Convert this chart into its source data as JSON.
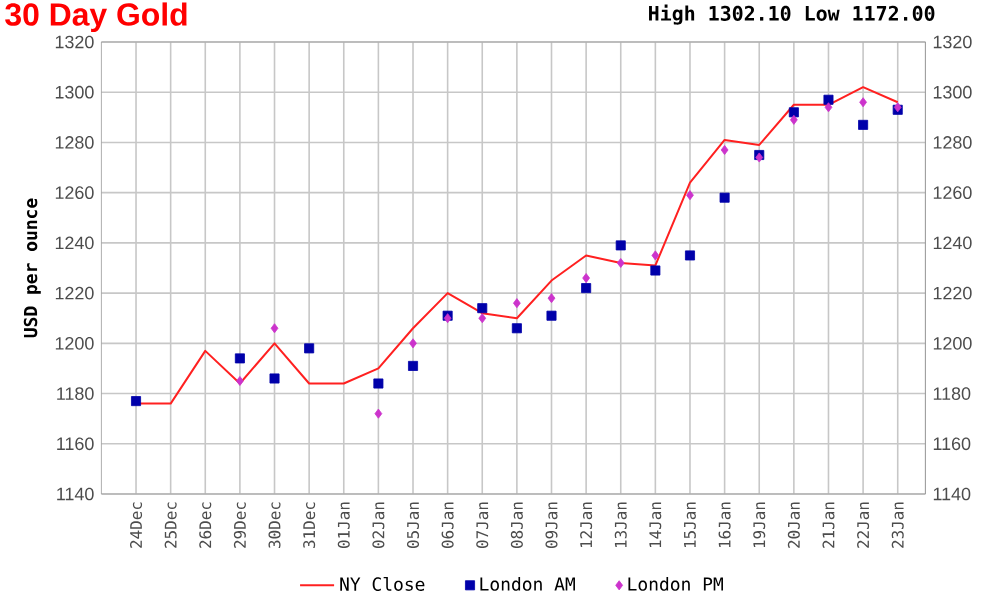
{
  "chart_data": {
    "type": "line",
    "title": "30 Day Gold",
    "subtitle": "High 1302.10 Low 1172.00",
    "ylabel": "USD per ounce",
    "categories": [
      "24Dec",
      "25Dec",
      "26Dec",
      "29Dec",
      "30Dec",
      "31Dec",
      "01Jan",
      "02Jan",
      "05Jan",
      "06Jan",
      "07Jan",
      "08Jan",
      "09Jan",
      "12Jan",
      "13Jan",
      "14Jan",
      "15Jan",
      "16Jan",
      "19Jan",
      "20Jan",
      "21Jan",
      "22Jan",
      "23Jan"
    ],
    "series": [
      {
        "name": "NY Close",
        "color": "#ff2020",
        "marker": "none",
        "line_style": "solid",
        "values": [
          1176,
          1176,
          1197,
          1184,
          1200,
          1184,
          1184,
          1190,
          1206,
          1220,
          1212,
          1210,
          1225,
          1235,
          1232,
          1231,
          1264,
          1281,
          1279,
          1295,
          1295,
          1302,
          1296
        ]
      },
      {
        "name": "London AM",
        "type": "scatter",
        "color": "#0000aa",
        "marker": "square",
        "values": [
          1177,
          null,
          null,
          1194,
          1186,
          1198,
          null,
          1184,
          1191,
          1211,
          1214,
          1206,
          1211,
          1222,
          1239,
          1229,
          1235,
          1258,
          1275,
          1292,
          1297,
          1287,
          1293
        ]
      },
      {
        "name": "London PM",
        "type": "scatter",
        "color": "#cc33cc",
        "marker": "diamond",
        "values": [
          null,
          null,
          null,
          1185,
          1206,
          null,
          null,
          1172,
          1200,
          1210,
          1210,
          1216,
          1218,
          1226,
          1232,
          1235,
          1259,
          1277,
          1274,
          1289,
          1294,
          1296,
          1294
        ]
      }
    ],
    "ylim": [
      1140,
      1320
    ],
    "yticks": [
      1140,
      1160,
      1180,
      1200,
      1220,
      1240,
      1260,
      1280,
      1300,
      1320
    ],
    "y2lim": [
      1140,
      1320
    ],
    "y2ticks": [
      1140,
      1160,
      1180,
      1200,
      1220,
      1240,
      1260,
      1280,
      1300,
      1320
    ],
    "grid": true,
    "legend": "bottom"
  }
}
